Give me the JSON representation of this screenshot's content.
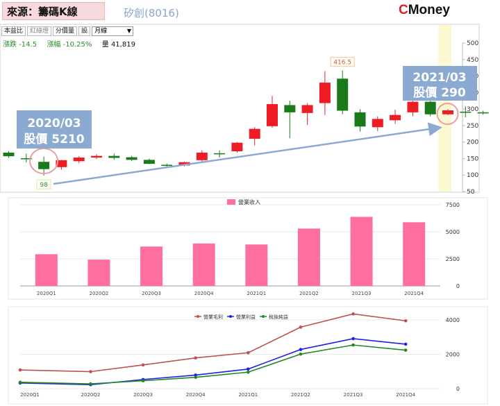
{
  "header": {
    "source_label": "來源：籌碼K線",
    "stock_title": "矽創(8016)",
    "brand_c": "C",
    "brand_rest": "Money"
  },
  "toolbar": {
    "buttons": [
      "本益比",
      "紅綠燈",
      "分價量",
      "設"
    ],
    "period_value": "月線"
  },
  "quote": {
    "change_label": "漲跌",
    "change_value": "-14.5",
    "pct_label": "漲幅",
    "pct_value": "-10.25%",
    "volume_label": "量",
    "volume_value": "41,819"
  },
  "callouts": {
    "left_date": "2020/03",
    "left_price": "股價 5210",
    "right_date": "2021/03",
    "right_price": "股價 290"
  },
  "colors": {
    "up": "#ee1c25",
    "down": "#1a7a1a",
    "pink": "#ff6ea1",
    "callout": "#8aaad2",
    "line_gross": "#c0504d",
    "line_operating": "#1f1fe8",
    "line_net": "#1e8a1e",
    "highlight": "#fbf8d2"
  },
  "chart_data": [
    {
      "type": "candlestick",
      "ylim": [
        50,
        500
      ],
      "yticks": [
        50,
        100,
        150,
        200,
        250,
        300,
        350,
        400,
        450,
        500
      ],
      "candles": [
        {
          "o": 168,
          "h": 172,
          "l": 152,
          "c": 157
        },
        {
          "o": 151,
          "h": 165,
          "l": 138,
          "c": 148
        },
        {
          "o": 140,
          "h": 156,
          "l": 98,
          "c": 118
        },
        {
          "o": 124,
          "h": 146,
          "l": 116,
          "c": 145
        },
        {
          "o": 142,
          "h": 157,
          "l": 136,
          "c": 153
        },
        {
          "o": 153,
          "h": 163,
          "l": 148,
          "c": 158
        },
        {
          "o": 158,
          "h": 165,
          "l": 146,
          "c": 152
        },
        {
          "o": 154,
          "h": 158,
          "l": 142,
          "c": 146
        },
        {
          "o": 146,
          "h": 150,
          "l": 133,
          "c": 134
        },
        {
          "o": 131,
          "h": 135,
          "l": 125,
          "c": 129
        },
        {
          "o": 129,
          "h": 140,
          "l": 126,
          "c": 139
        },
        {
          "o": 145,
          "h": 175,
          "l": 140,
          "c": 168
        },
        {
          "o": 166,
          "h": 175,
          "l": 153,
          "c": 163
        },
        {
          "o": 172,
          "h": 200,
          "l": 168,
          "c": 198
        },
        {
          "o": 210,
          "h": 245,
          "l": 190,
          "c": 240
        },
        {
          "o": 248,
          "h": 340,
          "l": 243,
          "c": 315
        },
        {
          "o": 312,
          "h": 325,
          "l": 212,
          "c": 290
        },
        {
          "o": 288,
          "h": 318,
          "l": 252,
          "c": 312
        },
        {
          "o": 318,
          "h": 415,
          "l": 282,
          "c": 380
        },
        {
          "o": 392,
          "h": 416.5,
          "l": 284,
          "c": 295
        },
        {
          "o": 290,
          "h": 300,
          "l": 232,
          "c": 247
        },
        {
          "o": 245,
          "h": 278,
          "l": 233,
          "c": 270
        },
        {
          "o": 266,
          "h": 298,
          "l": 255,
          "c": 282
        },
        {
          "o": 290,
          "h": 325,
          "l": 278,
          "c": 322
        },
        {
          "o": 322,
          "h": 325,
          "l": 278,
          "c": 284
        },
        {
          "o": 284,
          "h": 300,
          "l": 282,
          "c": 296
        },
        {
          "o": 292,
          "h": 308,
          "l": 275,
          "c": 290
        },
        {
          "o": 290,
          "h": 295,
          "l": 283,
          "c": 287
        }
      ],
      "annotations": {
        "high": "416.5",
        "low": "98"
      }
    },
    {
      "type": "bar",
      "legend": "營業收入",
      "categories": [
        "2020Q1",
        "2020Q2",
        "2020Q3",
        "2020Q4",
        "2021Q1",
        "2021Q2",
        "2021Q3",
        "2021Q4"
      ],
      "values": [
        2930,
        2430,
        3640,
        3920,
        3830,
        5300,
        6380,
        5880
      ],
      "ylim": [
        0,
        7500
      ],
      "yticks": [
        0,
        2500,
        5000,
        7500
      ]
    },
    {
      "type": "line",
      "categories": [
        "2020Q1",
        "2020Q2",
        "2020Q3",
        "2020Q4",
        "2021Q1",
        "2021Q2",
        "2021Q3",
        "2021Q4"
      ],
      "series": [
        {
          "name": "營業毛利",
          "values": [
            1090,
            990,
            1380,
            1790,
            2090,
            3580,
            4350,
            3950
          ]
        },
        {
          "name": "營業利益",
          "values": [
            330,
            230,
            530,
            790,
            1140,
            2280,
            2910,
            2590
          ]
        },
        {
          "name": "稅後純益",
          "values": [
            370,
            280,
            460,
            660,
            960,
            2010,
            2540,
            2240
          ]
        }
      ],
      "ylim": [
        0,
        4000
      ],
      "yticks": [
        0,
        2000,
        4000
      ]
    }
  ]
}
